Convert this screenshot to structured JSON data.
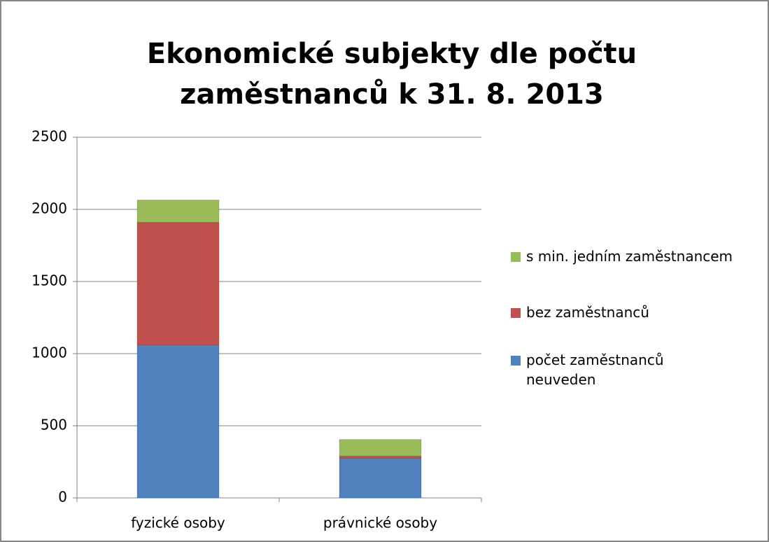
{
  "chart_data": {
    "type": "stacked_bar",
    "title": "Ekonomické subjekty dle počtu zaměstnanců k 31. 8. 2013",
    "categories": [
      "fyzické osoby",
      "právnické osoby"
    ],
    "series": [
      {
        "name": " počet zaměstnanců neuveden",
        "color": "#4f81bd",
        "values": [
          1060,
          275
        ]
      },
      {
        "name": "bez zaměstnanců",
        "color": "#c0504d",
        "values": [
          850,
          15
        ]
      },
      {
        "name": "s min. jedním zaměstnancem",
        "color": "#9bbb59",
        "values": [
          155,
          115
        ]
      }
    ],
    "ylim": [
      0,
      2500
    ],
    "yticks": [
      0,
      500,
      1000,
      1500,
      2000,
      2500
    ],
    "grid": true,
    "legend": "right"
  }
}
